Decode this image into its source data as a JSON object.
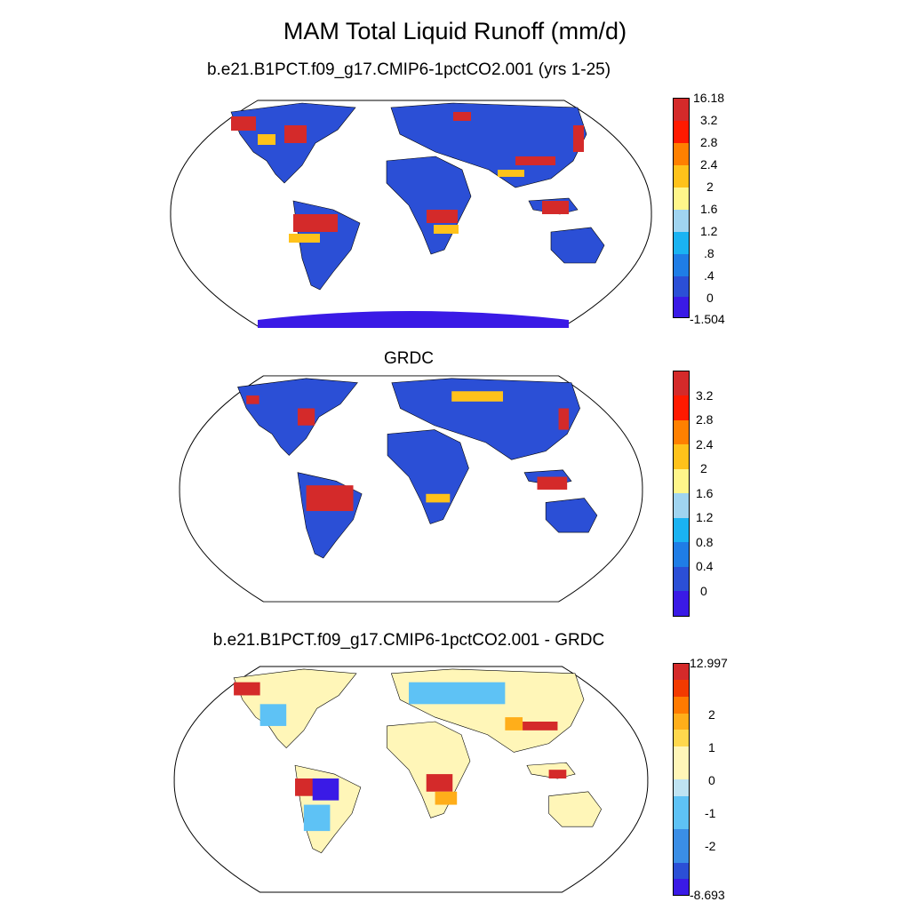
{
  "title": "MAM Total Liquid Runoff (mm/d)",
  "panels": [
    {
      "id": "model",
      "title": "b.e21.B1PCT.f09_g17.CMIP6-1pctCO2.001 (yrs 1-25)",
      "colorbar": {
        "colors": [
          "#3a1ae6",
          "#2b4fd6",
          "#1f7de6",
          "#1ab3f2",
          "#a0d4f0",
          "#fff68a",
          "#ffc21a",
          "#ff8000",
          "#ff1a00",
          "#d42a2a"
        ],
        "labels": [
          "16.18",
          "3.2",
          "2.8",
          "2.4",
          "2",
          "1.6",
          "1.2",
          ".8",
          ".4",
          "0",
          "-1.504"
        ]
      }
    },
    {
      "id": "grdc",
      "title": "GRDC",
      "colorbar": {
        "colors": [
          "#3a1ae6",
          "#2b4fd6",
          "#1f7de6",
          "#1ab3f2",
          "#a0d4f0",
          "#fff68a",
          "#ffc21a",
          "#ff8000",
          "#ff1a00",
          "#d42a2a"
        ],
        "labels": [
          "3.2",
          "2.8",
          "2.4",
          "2",
          "1.6",
          "1.2",
          "0.8",
          "0.4",
          "0"
        ]
      }
    },
    {
      "id": "difference",
      "title": "b.e21.B1PCT.f09_g17.CMIP6-1pctCO2.001 - GRDC",
      "colorbar": {
        "colors": [
          "#3a1ae6",
          "#2b4fd6",
          "#3a8ee6",
          "#5ec2f5",
          "#bfe3f2",
          "#fff6b8",
          "#ffd84d",
          "#ffae1a",
          "#ff7a00",
          "#f23a00",
          "#d42a2a"
        ],
        "labels": [
          "12.997",
          "2",
          "1",
          "0",
          "-1",
          "-2",
          "-8.693"
        ]
      }
    }
  ]
}
